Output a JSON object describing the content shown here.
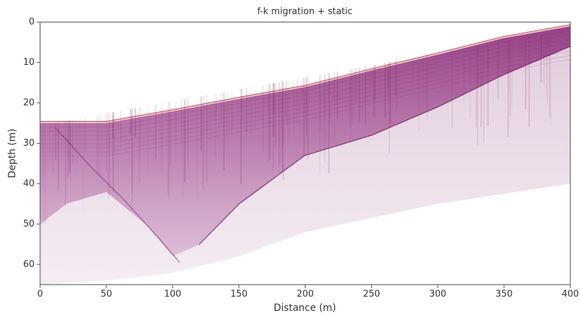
{
  "chart_data": {
    "type": "image",
    "title": "f-k migration + static",
    "x_label": "Distance (m)",
    "y_label": "Depth (m)",
    "xlim": [
      0,
      400
    ],
    "xticks": [
      0,
      50,
      100,
      150,
      200,
      250,
      300,
      350,
      400
    ],
    "ylim": [
      65,
      0
    ],
    "yticks": [
      0,
      10,
      20,
      30,
      40,
      50,
      60
    ]
  }
}
